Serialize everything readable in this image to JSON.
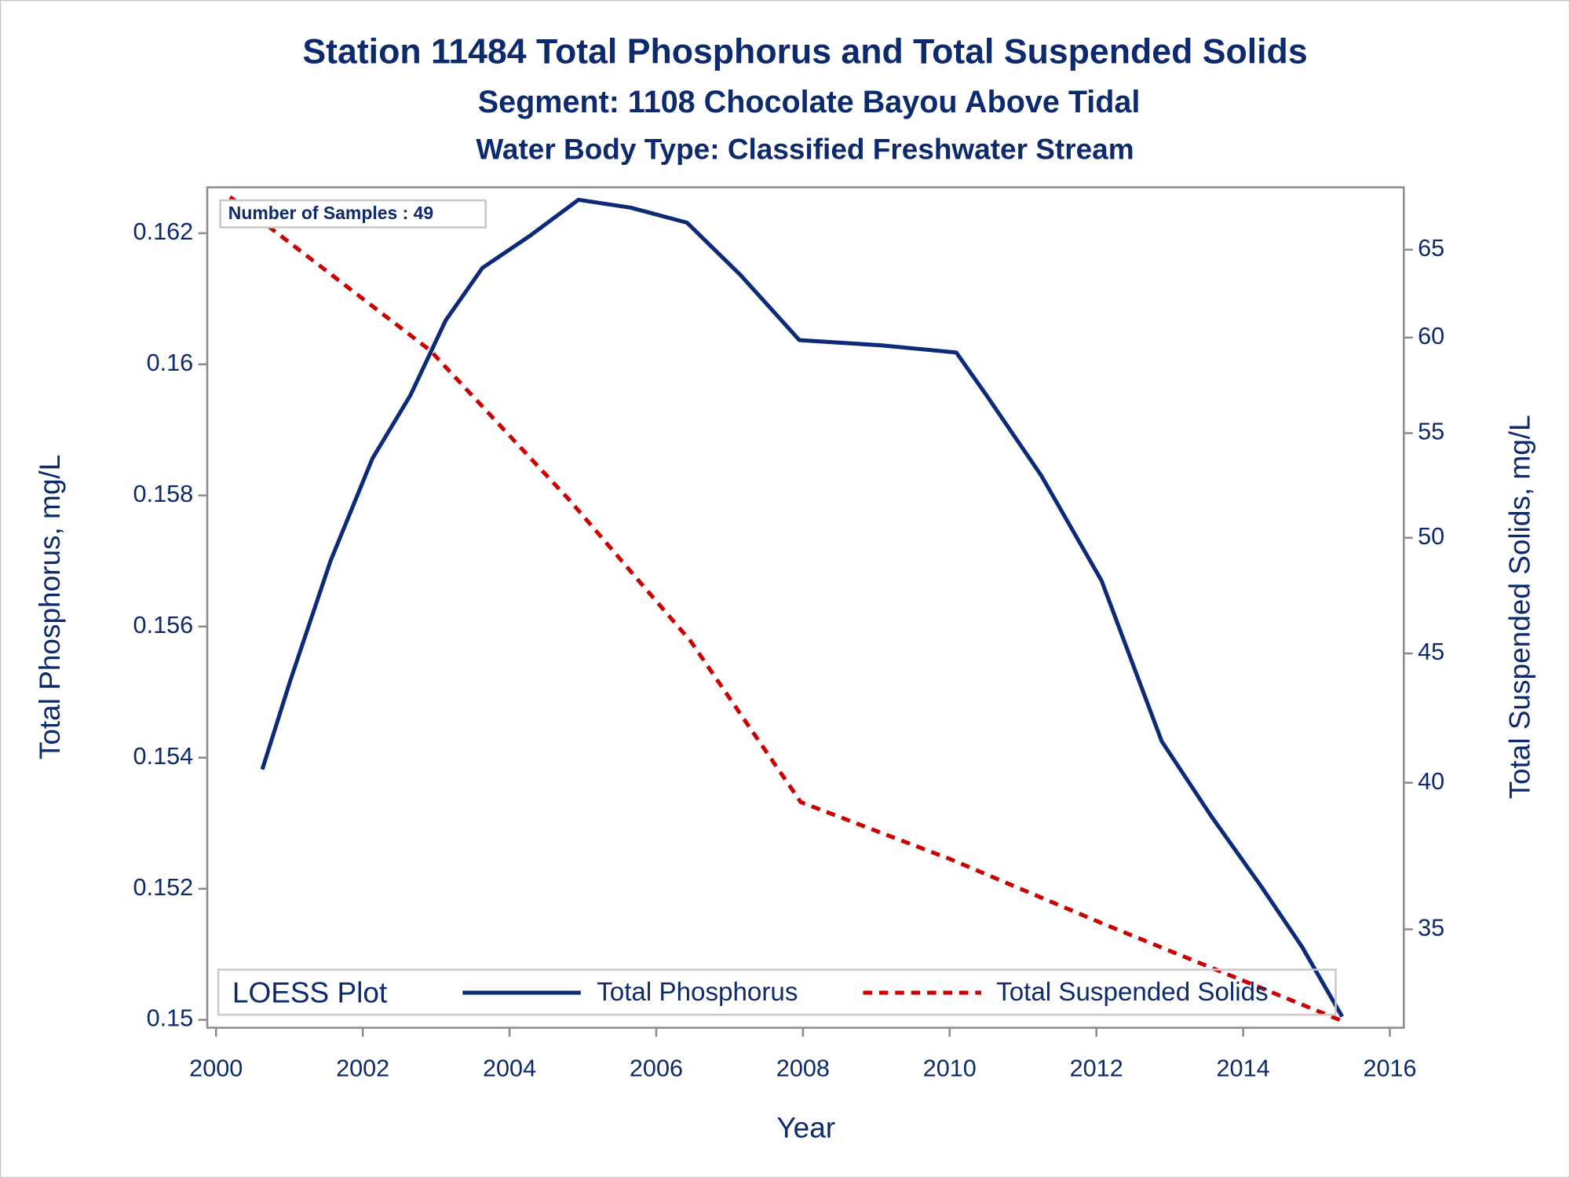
{
  "chart_data": {
    "type": "line",
    "title": "Station 11484  Total Phosphorus and Total Suspended Solids",
    "subtitle": "Segment: 1108  Chocolate Bayou Above Tidal",
    "subtitle2": "Water Body Type: Classified Freshwater Stream",
    "annotation": "Number of Samples : 49",
    "x_label": "Year",
    "y_label": "Total Phosphorus, mg/L",
    "y2_label": "Total Suspended Solids, mg/L",
    "legend_title": "LOESS Plot",
    "legend": "bottom",
    "xlim": [
      1999.88,
      2016.19
    ],
    "xticks": [
      2000,
      2002,
      2004,
      2006,
      2008,
      2010,
      2012,
      2014,
      2016
    ],
    "ylim": [
      0.14988,
      0.1627
    ],
    "yticks": [
      0.15,
      0.152,
      0.154,
      0.156,
      0.158,
      0.16,
      0.162
    ],
    "y2lim": [
      32.0,
      68.8
    ],
    "y2ticks": [
      35,
      40,
      45,
      50,
      55,
      60,
      65
    ],
    "y2scale": "log",
    "series": [
      {
        "name": "Total Phosphorus",
        "color": "#0b2a78",
        "style": "solid",
        "x": [
          2000.63,
          2001.01,
          2001.56,
          2002.13,
          2002.65,
          2003.13,
          2003.63,
          2004.29,
          2004.94,
          2005.65,
          2006.42,
          2007.15,
          2007.95,
          2009.06,
          2010.09,
          2010.5,
          2011.25,
          2012.07,
          2012.89,
          2013.57,
          2014.25,
          2014.8,
          2015.35
        ],
        "values": [
          0.15382,
          0.15517,
          0.157,
          0.15856,
          0.15953,
          0.16067,
          0.16147,
          0.16197,
          0.16251,
          0.16239,
          0.16216,
          0.16136,
          0.16037,
          0.16029,
          0.16018,
          0.15953,
          0.1583,
          0.1567,
          0.15425,
          0.1531,
          0.15203,
          0.15112,
          0.15005
        ]
      },
      {
        "name": "Total Suspended Solids",
        "color": "#cc0000",
        "style": "dashed",
        "axis": "y2",
        "x": [
          2000.19,
          2002.92,
          2004.83,
          2006.47,
          2007.97,
          2010.02,
          2012.07,
          2015.35
        ],
        "values": [
          68.2,
          59.3,
          51.7,
          45.5,
          39.3,
          37.3,
          35.2,
          32.2
        ]
      }
    ]
  }
}
